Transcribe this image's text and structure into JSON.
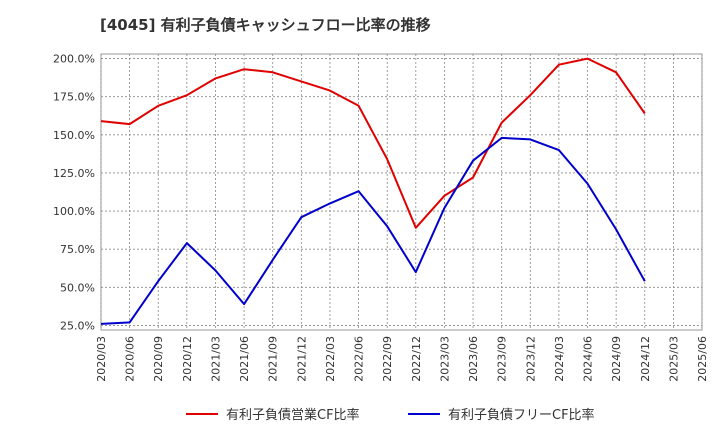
{
  "chart_data": {
    "type": "line",
    "title": "[4045]  有利子負債キャッシュフロー比率の推移",
    "xlabel": "",
    "ylabel": "",
    "categories": [
      "2020/03",
      "2020/06",
      "2020/09",
      "2020/12",
      "2021/03",
      "2021/06",
      "2021/09",
      "2021/12",
      "2022/03",
      "2022/06",
      "2022/09",
      "2022/12",
      "2023/03",
      "2023/06",
      "2023/09",
      "2023/12",
      "2024/03",
      "2024/06",
      "2024/09",
      "2024/12",
      "2025/03",
      "2025/06"
    ],
    "y_ticks": [
      "25.0%",
      "50.0%",
      "75.0%",
      "100.0%",
      "125.0%",
      "150.0%",
      "175.0%",
      "200.0%"
    ],
    "ylim": [
      22,
      203
    ],
    "grid": true,
    "legend_position": "bottom",
    "series": [
      {
        "name": "有利子負債営業CF比率",
        "color": "#e00000",
        "values": [
          159,
          157,
          169,
          176,
          187,
          193,
          191,
          185,
          179,
          169,
          134,
          89,
          110,
          122,
          158,
          176,
          196,
          200,
          191,
          164,
          null,
          null
        ]
      },
      {
        "name": "有利子負債フリーCF比率",
        "color": "#0000cc",
        "values": [
          26,
          27,
          54,
          79,
          61,
          39,
          68,
          96,
          105,
          113,
          90,
          60,
          102,
          133,
          148,
          147,
          140,
          118,
          88,
          54,
          null,
          null
        ]
      }
    ]
  }
}
